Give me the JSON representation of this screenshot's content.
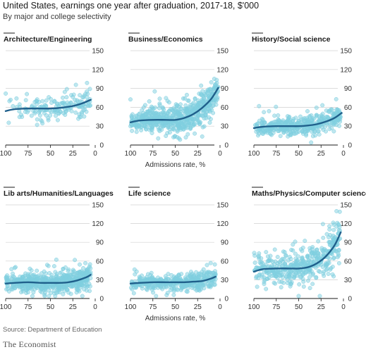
{
  "header": {
    "title": "United States, earnings one year after graduation, 2017-18, $'000",
    "subtitle": "By major and college selectivity"
  },
  "footer": {
    "source": "Source: Department of Education",
    "brand": "The Economist"
  },
  "colors": {
    "points": "#7fcfe0",
    "trend": "#1f5f8b",
    "grid": "#d0d0d0",
    "axis": "#1a1a1a"
  },
  "chart_data": [
    {
      "type": "scatter",
      "title": "Architecture/Engineering",
      "xlabel": "",
      "ylabel": "",
      "xlim": [
        100,
        0
      ],
      "ylim": [
        0,
        150
      ],
      "x_ticks": [
        100,
        75,
        50,
        25,
        0
      ],
      "y_ticks": [
        0,
        30,
        60,
        90,
        120,
        150
      ],
      "point_count": 170,
      "point_spread": 7,
      "point_x_range": [
        100,
        5
      ],
      "trend": {
        "x": [
          100,
          90,
          75,
          60,
          50,
          40,
          25,
          15,
          5
        ],
        "y": [
          54,
          57,
          58,
          58,
          58,
          59,
          62,
          66,
          72
        ]
      }
    },
    {
      "type": "scatter",
      "title": "Business/Economics",
      "xlabel": "Admissions rate, %",
      "ylabel": "",
      "xlim": [
        100,
        0
      ],
      "ylim": [
        0,
        150
      ],
      "x_ticks": [
        100,
        75,
        50,
        25,
        0
      ],
      "y_ticks": [
        0,
        30,
        60,
        90,
        120,
        150
      ],
      "point_count": 650,
      "point_spread": 8,
      "point_x_range": [
        100,
        2
      ],
      "trend": {
        "x": [
          100,
          90,
          75,
          60,
          50,
          40,
          30,
          20,
          10,
          2
        ],
        "y": [
          36,
          39,
          40,
          40,
          40,
          43,
          49,
          59,
          73,
          91
        ]
      }
    },
    {
      "type": "scatter",
      "title": "History/Social science",
      "xlabel": "",
      "ylabel": "",
      "xlim": [
        100,
        0
      ],
      "ylim": [
        0,
        150
      ],
      "x_ticks": [
        100,
        75,
        50,
        25,
        0
      ],
      "y_ticks": [
        0,
        30,
        60,
        90,
        120,
        150
      ],
      "point_count": 420,
      "point_spread": 6,
      "point_x_range": [
        100,
        3
      ],
      "trend": {
        "x": [
          100,
          90,
          75,
          60,
          50,
          40,
          30,
          20,
          10,
          2
        ],
        "y": [
          27,
          29,
          30,
          30,
          30,
          31,
          33,
          37,
          43,
          51
        ]
      }
    },
    {
      "type": "scatter",
      "title": "Lib arts/Humanities/Languages",
      "xlabel": "",
      "ylabel": "",
      "xlim": [
        100,
        0
      ],
      "ylim": [
        0,
        150
      ],
      "x_ticks": [
        100,
        75,
        50,
        25,
        0
      ],
      "y_ticks": [
        0,
        30,
        60,
        90,
        120,
        150
      ],
      "point_count": 600,
      "point_spread": 6,
      "point_x_range": [
        100,
        5
      ],
      "trend": {
        "x": [
          100,
          90,
          75,
          60,
          50,
          40,
          30,
          20,
          10,
          5
        ],
        "y": [
          24,
          25,
          26,
          25,
          25,
          25,
          26,
          29,
          34,
          38
        ]
      }
    },
    {
      "type": "scatter",
      "title": "Life science",
      "xlabel": "Admissions rate, %",
      "ylabel": "",
      "xlim": [
        100,
        0
      ],
      "ylim": [
        0,
        150
      ],
      "x_ticks": [
        100,
        75,
        50,
        25,
        0
      ],
      "y_ticks": [
        0,
        30,
        60,
        90,
        120,
        150
      ],
      "point_count": 420,
      "point_spread": 5,
      "point_x_range": [
        100,
        5
      ],
      "trend": {
        "x": [
          100,
          90,
          75,
          60,
          50,
          40,
          30,
          20,
          10,
          5
        ],
        "y": [
          24,
          25,
          26,
          26,
          26,
          26,
          27,
          28,
          32,
          35
        ]
      }
    },
    {
      "type": "scatter",
      "title": "Maths/Physics/Computer science",
      "xlabel": "",
      "ylabel": "",
      "xlim": [
        100,
        0
      ],
      "ylim": [
        0,
        150
      ],
      "x_ticks": [
        100,
        75,
        50,
        25,
        0
      ],
      "y_ticks": [
        0,
        30,
        60,
        90,
        120,
        150
      ],
      "point_count": 450,
      "point_spread": 11,
      "point_x_range": [
        100,
        3
      ],
      "trend": {
        "x": [
          100,
          90,
          75,
          60,
          50,
          40,
          30,
          20,
          10,
          3
        ],
        "y": [
          43,
          47,
          48,
          48,
          48,
          50,
          56,
          67,
          85,
          106
        ]
      }
    }
  ]
}
